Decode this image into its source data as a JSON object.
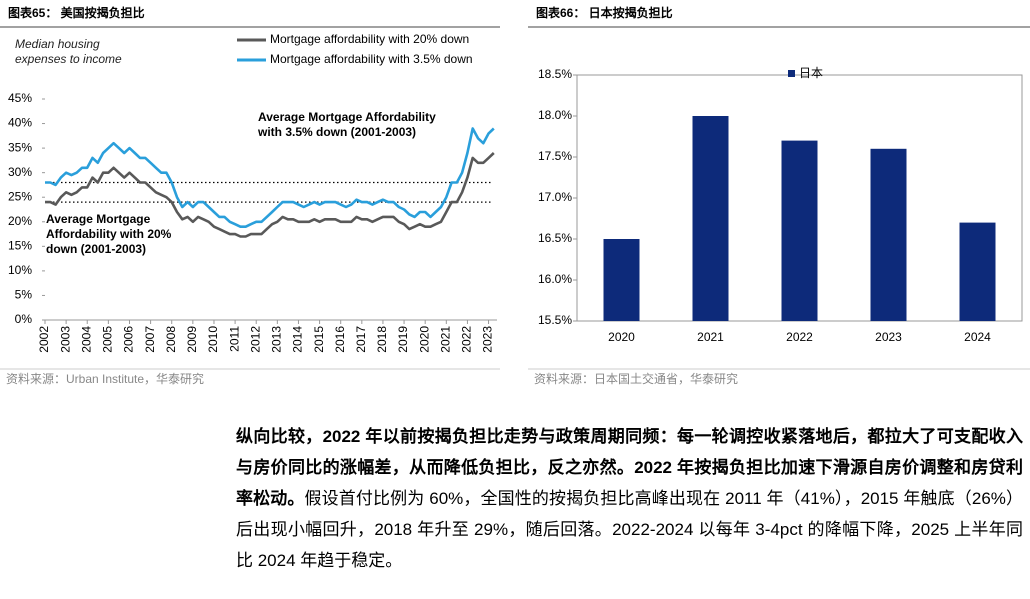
{
  "chart_data": [
    {
      "type": "line",
      "title": "图表65：  美国按揭负担比",
      "source": "资料来源：Urban Institute，华泰研究",
      "ylabel": "Median housing expenses to income",
      "x": [
        2002,
        2002.25,
        2002.5,
        2002.75,
        2003,
        2003.25,
        2003.5,
        2003.75,
        2004,
        2004.25,
        2004.5,
        2004.75,
        2005,
        2005.25,
        2005.5,
        2005.75,
        2006,
        2006.25,
        2006.5,
        2006.75,
        2007,
        2007.25,
        2007.5,
        2007.75,
        2008,
        2008.25,
        2008.5,
        2008.75,
        2009,
        2009.25,
        2009.5,
        2009.75,
        2010,
        2010.25,
        2010.5,
        2010.75,
        2011,
        2011.25,
        2011.5,
        2011.75,
        2012,
        2012.25,
        2012.5,
        2012.75,
        2013,
        2013.25,
        2013.5,
        2013.75,
        2014,
        2014.25,
        2014.5,
        2014.75,
        2015,
        2015.25,
        2015.5,
        2015.75,
        2016,
        2016.25,
        2016.5,
        2016.75,
        2017,
        2017.25,
        2017.5,
        2017.75,
        2018,
        2018.25,
        2018.5,
        2018.75,
        2019,
        2019.25,
        2019.5,
        2019.75,
        2020,
        2020.25,
        2020.5,
        2020.75,
        2021,
        2021.25,
        2021.5,
        2021.75,
        2022,
        2022.25,
        2022.5,
        2022.75,
        2023,
        2023.25
      ],
      "series": [
        {
          "name": "Mortgage affordability with 20% down",
          "color": "#595959",
          "values": [
            24,
            24,
            23.5,
            25,
            26,
            25.5,
            26,
            27,
            27,
            29,
            28,
            30,
            30,
            31,
            30,
            29,
            30,
            29,
            28,
            28,
            27,
            26,
            25.5,
            25,
            24,
            22,
            20.5,
            21,
            20,
            21,
            20.5,
            20,
            19,
            18.5,
            18,
            17.5,
            17.5,
            17,
            17,
            17.5,
            17.5,
            17.5,
            18.5,
            19.5,
            20,
            21,
            20.5,
            20.5,
            20,
            20,
            20,
            20.5,
            20,
            20.5,
            20.5,
            20.5,
            20,
            20,
            20,
            21,
            20.5,
            20.5,
            20,
            20.5,
            21,
            21,
            21,
            20,
            19.5,
            18.5,
            19,
            19.5,
            19,
            19,
            19.5,
            20,
            22,
            24,
            24,
            26,
            29,
            33,
            32,
            32,
            33,
            34
          ]
        },
        {
          "name": "Mortgage affordability with 3.5% down",
          "color": "#2a9fdb",
          "values": [
            28,
            28,
            27.5,
            29,
            30,
            29.5,
            30,
            31,
            31,
            33,
            32,
            34,
            35,
            36,
            35,
            34,
            35,
            34,
            33,
            33,
            32,
            31,
            30,
            30,
            28,
            25,
            23,
            24,
            23,
            24,
            24,
            23,
            22,
            21,
            21,
            20,
            19.5,
            19,
            19,
            19.5,
            20,
            20,
            21,
            22,
            23,
            24,
            24,
            24,
            23.5,
            23,
            23.5,
            24,
            23.5,
            24,
            24,
            24,
            23.5,
            23,
            23.5,
            24.5,
            24,
            24,
            23.5,
            24,
            24.5,
            24,
            24,
            23,
            22.5,
            21.5,
            21,
            22,
            22,
            21,
            22,
            23,
            25,
            28,
            28,
            30,
            34,
            39,
            37,
            36,
            38,
            39
          ]
        }
      ],
      "annotations": [
        {
          "text": "Average Mortgage Affordability with 3.5% down (2001-2003)",
          "y": 28
        },
        {
          "text": "Average Mortgage Affordability with 20% down (2001-2003)",
          "y": 24
        }
      ],
      "xlim": [
        2002,
        2023.4
      ],
      "xticks": [
        2002,
        2003,
        2004,
        2005,
        2006,
        2007,
        2008,
        2009,
        2010,
        2011,
        2012,
        2013,
        2014,
        2015,
        2016,
        2017,
        2018,
        2019,
        2020,
        2021,
        2022,
        2023
      ],
      "ylim": [
        0,
        45
      ],
      "yticks": [
        {
          "value": 0,
          "label": "0%"
        },
        {
          "value": 5,
          "label": "5%"
        },
        {
          "value": 10,
          "label": "10%"
        },
        {
          "value": 15,
          "label": "15%"
        },
        {
          "value": 20,
          "label": "20%"
        },
        {
          "value": 25,
          "label": "25%"
        },
        {
          "value": 30,
          "label": "30%"
        },
        {
          "value": 35,
          "label": "35%"
        },
        {
          "value": 40,
          "label": "40%"
        },
        {
          "value": 45,
          "label": "45%"
        }
      ]
    },
    {
      "type": "bar",
      "title": "图表66：  日本按揭负担比",
      "source": "资料来源：日本国土交通省，华泰研究",
      "categories": [
        "2020",
        "2021",
        "2022",
        "2023",
        "2024"
      ],
      "series": [
        {
          "name": "日本",
          "color": "#0d2a7a",
          "values": [
            16.5,
            18.0,
            17.7,
            17.6,
            16.7
          ]
        }
      ],
      "ylim": [
        15.5,
        18.5
      ],
      "yticks": [
        {
          "value": 15.5,
          "label": "15.5%"
        },
        {
          "value": 16,
          "label": "16.0%"
        },
        {
          "value": 16.5,
          "label": "16.5%"
        },
        {
          "value": 17,
          "label": "17.0%"
        },
        {
          "value": 17.5,
          "label": "17.5%"
        },
        {
          "value": 18,
          "label": "18.0%"
        },
        {
          "value": 18.5,
          "label": "18.5%"
        }
      ]
    }
  ],
  "paragraph": [
    {
      "text": "纵向比较，2022 年以前按揭负担比走势与政策周期同频：每一轮调控收紧落地后，都拉大了可支配收入与房价同比的涨幅差，从而降低负担比，反之亦然。2022 年按揭负担比加速下滑源自房价调整和房贷利率松动。",
      "bold": true
    },
    {
      "text": "假设首付比例为 60%，全国性的按揭负担比高峰出现在 2011 年（41%），2015 年触底（26%）后出现小幅回升，2018 年升至 29%，随后回落。2022-2024 以每年 3-4pct 的降幅下降，2025 上半年同比 2024 年趋于稳定。",
      "bold": false
    }
  ]
}
